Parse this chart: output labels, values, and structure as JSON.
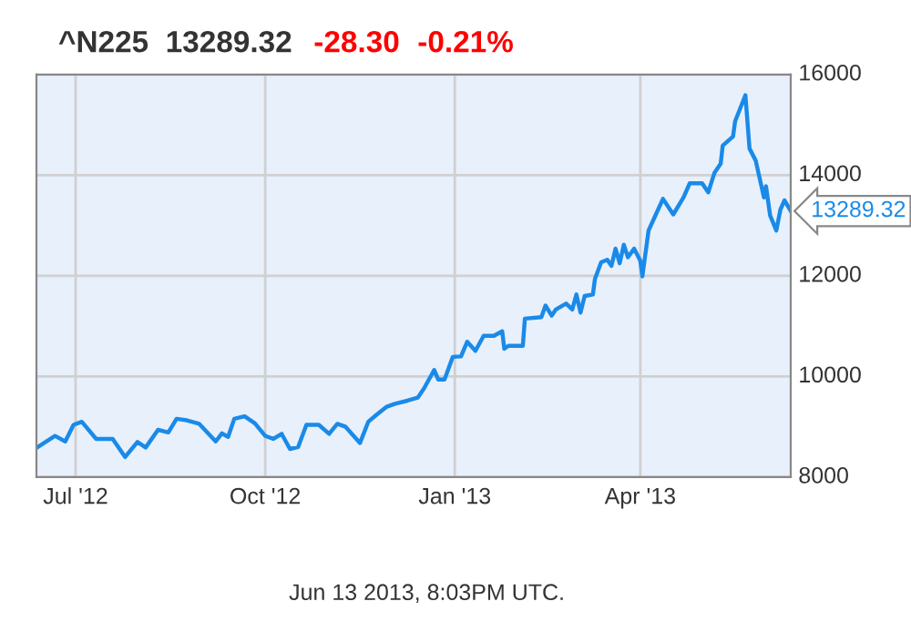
{
  "chart_data": {
    "type": "line",
    "title": "^N225  13289.32",
    "annotations": [
      "-28.30",
      "-0.21%",
      "Jun 13 2013, 8:03PM UTC.",
      {
        "text": "13289.32",
        "x": "2013-06-13",
        "y": 13289.32
      }
    ],
    "x": [
      "2012-06-12",
      "2012-06-21",
      "2012-06-26",
      "2012-06-30",
      "2012-07-04",
      "2012-07-11",
      "2012-07-19",
      "2012-07-25",
      "2012-07-31",
      "2012-08-04",
      "2012-08-10",
      "2012-08-15",
      "2012-08-19",
      "2012-08-24",
      "2012-08-30",
      "2012-09-07",
      "2012-09-10",
      "2012-09-13",
      "2012-09-16",
      "2012-09-21",
      "2012-09-26",
      "2012-10-01",
      "2012-10-05",
      "2012-10-09",
      "2012-10-13",
      "2012-10-17",
      "2012-10-21",
      "2012-10-27",
      "2012-11-01",
      "2012-11-05",
      "2012-11-09",
      "2012-11-16",
      "2012-11-20",
      "2012-11-24",
      "2012-11-29",
      "2012-12-03",
      "2012-12-09",
      "2012-12-14",
      "2012-12-17",
      "2012-12-22",
      "2012-12-24",
      "2012-12-27",
      "2012-12-31",
      "2013-01-04",
      "2013-01-07",
      "2013-01-11",
      "2013-01-15",
      "2013-01-20",
      "2013-01-24",
      "2013-01-25",
      "2013-01-27",
      "2013-02-03",
      "2013-02-04",
      "2013-02-12",
      "2013-02-14",
      "2013-02-17",
      "2013-02-19",
      "2013-02-24",
      "2013-02-27",
      "2013-03-01",
      "2013-03-03",
      "2013-03-05",
      "2013-03-09",
      "2013-03-10",
      "2013-03-13",
      "2013-03-16",
      "2013-03-18",
      "2013-03-20",
      "2013-03-22",
      "2013-03-24",
      "2013-03-26",
      "2013-03-29",
      "2013-04-01",
      "2013-04-02",
      "2013-04-05",
      "2013-04-08",
      "2013-04-12",
      "2013-04-17",
      "2013-04-22",
      "2013-04-25",
      "2013-05-01",
      "2013-05-04",
      "2013-05-07",
      "2013-05-10",
      "2013-05-11",
      "2013-05-16",
      "2013-05-17",
      "2013-05-22",
      "2013-05-24",
      "2013-05-27",
      "2013-05-31",
      "2013-06-01",
      "2013-06-03",
      "2013-06-06",
      "2013-06-08",
      "2013-06-10",
      "2013-06-13"
    ],
    "series": [
      {
        "color": "#1a8ae8",
        "values": [
          8580,
          8820,
          8710,
          9040,
          9100,
          8760,
          8760,
          8400,
          8700,
          8590,
          8940,
          8890,
          9160,
          9130,
          9060,
          8710,
          8870,
          8800,
          9160,
          9210,
          9070,
          8820,
          8760,
          8860,
          8560,
          8600,
          9040,
          9040,
          8860,
          9060,
          9000,
          8680,
          9100,
          9240,
          9400,
          9460,
          9520,
          9580,
          9760,
          10130,
          9940,
          9940,
          10390,
          10400,
          10690,
          10510,
          10810,
          10810,
          10900,
          10550,
          10610,
          10610,
          11150,
          11180,
          11410,
          11210,
          11330,
          11450,
          11330,
          11630,
          11270,
          11600,
          11630,
          11940,
          12270,
          12320,
          12200,
          12540,
          12250,
          12620,
          12370,
          12540,
          12300,
          11990,
          12900,
          13170,
          13530,
          13220,
          13560,
          13840,
          13840,
          13660,
          14050,
          14230,
          14590,
          14770,
          15070,
          15590,
          14530,
          14290,
          13560,
          13780,
          13200,
          12900,
          13320,
          13500,
          13289.32
        ]
      }
    ],
    "xlim": [
      "2012-06-12",
      "2013-06-13"
    ],
    "xticks": [
      {
        "value": "2012-07-01",
        "label": "Jul '12"
      },
      {
        "value": "2012-10-01",
        "label": "Oct '12"
      },
      {
        "value": "2013-01-01",
        "label": "Jan '13"
      },
      {
        "value": "2013-04-01",
        "label": "Apr '13"
      }
    ],
    "ylim": [
      8000,
      16000
    ],
    "yticks": [
      8000,
      10000,
      12000,
      14000,
      16000
    ],
    "grid": true,
    "marker": "none",
    "line_style": "solid"
  }
}
